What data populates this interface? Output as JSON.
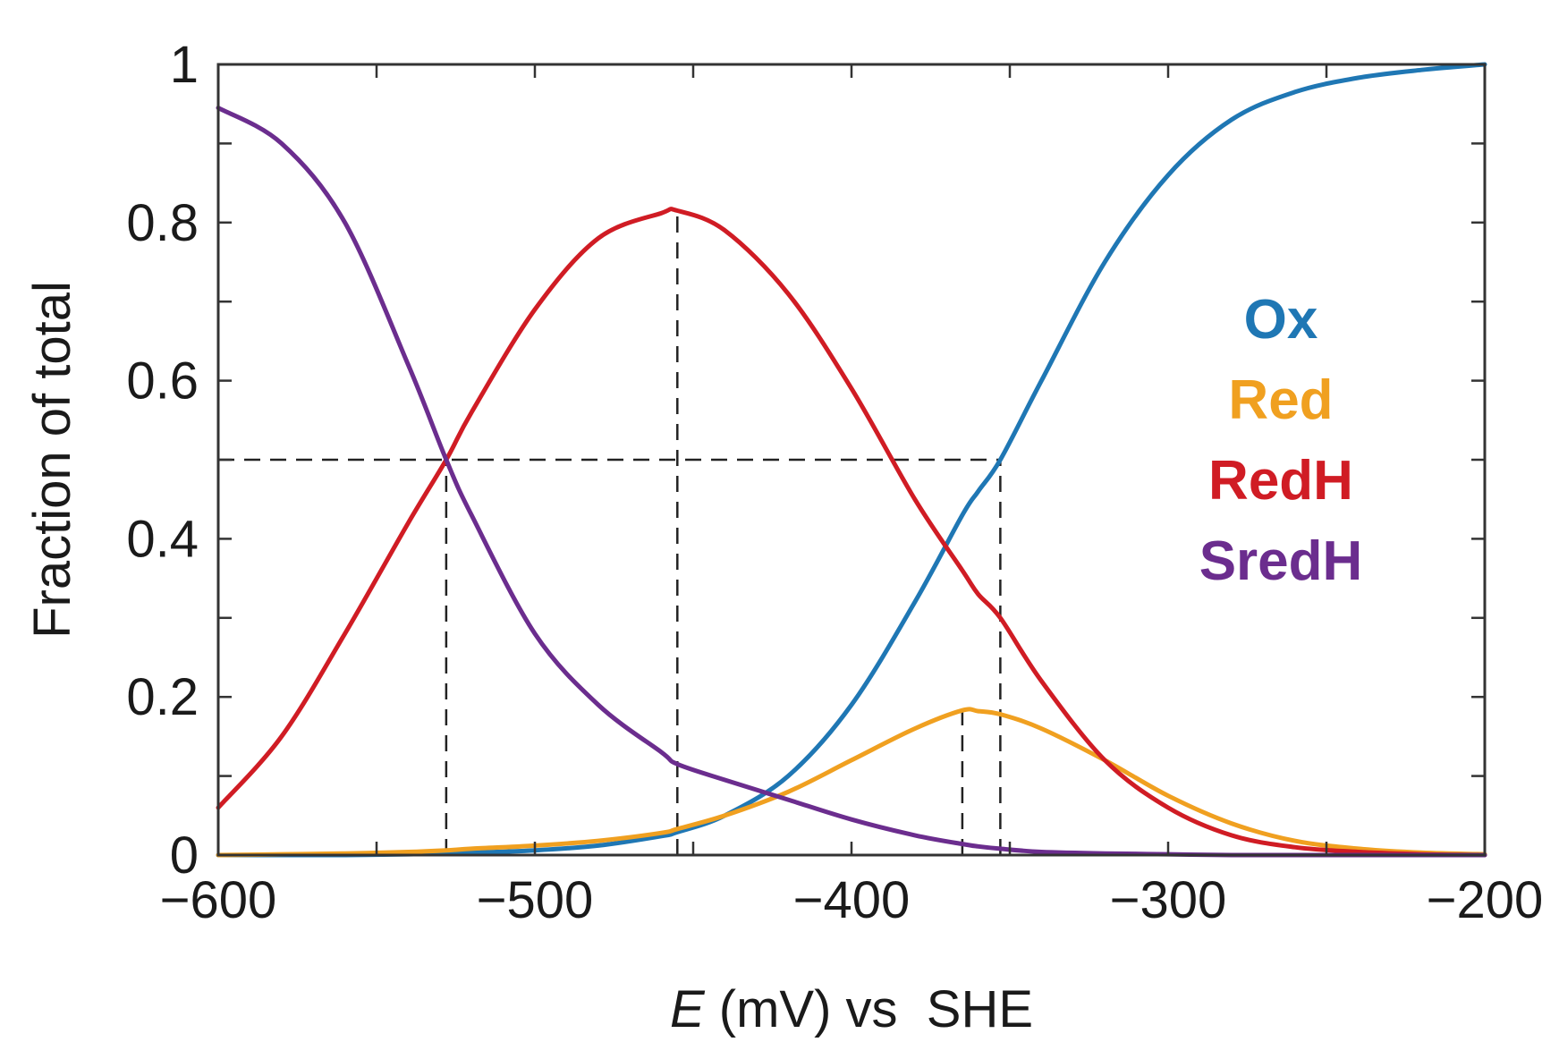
{
  "chart_data": {
    "type": "line",
    "title": "",
    "xlabel": {
      "italic_part": "E",
      "rest": " (mV) vs  SHE"
    },
    "ylabel": "Fraction of total",
    "xlim": [
      -600,
      -200
    ],
    "ylim": [
      0,
      1
    ],
    "x_ticks": [
      -600,
      -500,
      -400,
      -300,
      -200
    ],
    "x_tick_labels": [
      "−600",
      "−500",
      "−400",
      "−300",
      "−200"
    ],
    "y_ticks": [
      0,
      0.2,
      0.4,
      0.6,
      0.8,
      1
    ],
    "y_tick_labels": [
      "0",
      "0.2",
      "0.4",
      "0.6",
      "0.8",
      "1"
    ],
    "grid": false,
    "legend_position": "right",
    "reference_lines": [
      {
        "orientation": "horizontal",
        "y": 0.5,
        "x_from": -600,
        "x_to": -353
      },
      {
        "orientation": "vertical",
        "x": -528,
        "y_from": 0,
        "y_to": 0.5
      },
      {
        "orientation": "vertical",
        "x": -455,
        "y_from": 0,
        "y_to": 0.815
      },
      {
        "orientation": "vertical",
        "x": -365,
        "y_from": 0,
        "y_to": 0.183
      },
      {
        "orientation": "vertical",
        "x": -353,
        "y_from": 0,
        "y_to": 0.5
      }
    ],
    "x": [
      -600,
      -580,
      -560,
      -540,
      -528,
      -520,
      -500,
      -480,
      -460,
      -455,
      -440,
      -420,
      -400,
      -380,
      -365,
      -360,
      -353,
      -340,
      -320,
      -300,
      -280,
      -260,
      -240,
      -220,
      -200
    ],
    "series": [
      {
        "name": "Ox",
        "color": "#1f77b4",
        "values": [
          0.0,
          0.0,
          0.0,
          0.001,
          0.002,
          0.003,
          0.006,
          0.012,
          0.024,
          0.029,
          0.05,
          0.1,
          0.19,
          0.32,
          0.43,
          0.46,
          0.5,
          0.6,
          0.75,
          0.86,
          0.93,
          0.965,
          0.983,
          0.993,
          1.0
        ]
      },
      {
        "name": "Red",
        "color": "#f0a020",
        "values": [
          0.0,
          0.001,
          0.002,
          0.004,
          0.006,
          0.008,
          0.012,
          0.018,
          0.028,
          0.033,
          0.05,
          0.08,
          0.12,
          0.16,
          0.183,
          0.182,
          0.178,
          0.16,
          0.12,
          0.075,
          0.04,
          0.018,
          0.008,
          0.003,
          0.001
        ]
      },
      {
        "name": "RedH",
        "color": "#d01c24",
        "values": [
          0.06,
          0.15,
          0.28,
          0.42,
          0.5,
          0.56,
          0.69,
          0.78,
          0.812,
          0.815,
          0.79,
          0.71,
          0.59,
          0.45,
          0.36,
          0.33,
          0.3,
          0.22,
          0.12,
          0.06,
          0.025,
          0.01,
          0.004,
          0.001,
          0.0
        ]
      },
      {
        "name": "SredH",
        "color": "#6b2d8e",
        "values": [
          0.945,
          0.9,
          0.8,
          0.62,
          0.5,
          0.43,
          0.28,
          0.19,
          0.13,
          0.115,
          0.095,
          0.07,
          0.045,
          0.025,
          0.014,
          0.011,
          0.008,
          0.004,
          0.002,
          0.001,
          0.0,
          0.0,
          0.0,
          0.0,
          0.0
        ]
      }
    ]
  }
}
